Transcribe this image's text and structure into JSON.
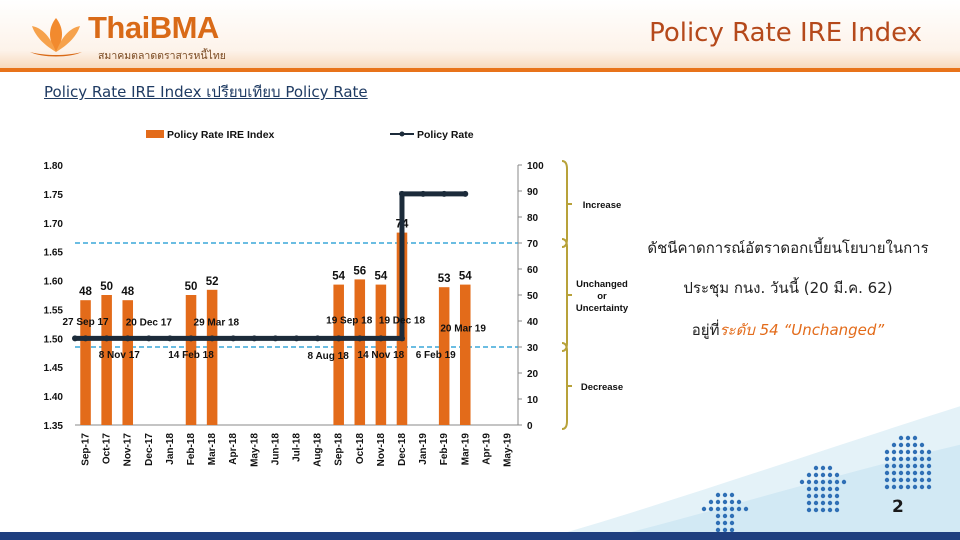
{
  "header": {
    "logo_text": "ThaiBMA",
    "logo_subtext": "สมาคมตลาดตราสารหนี้ไทย",
    "title": "Policy Rate IRE Index"
  },
  "subtitle": "Policy Rate IRE Index เปรียบเทียบ Policy Rate",
  "side_note": {
    "line1": "ดัชนีคาดการณ์อัตราดอกเบี้ยนโยบายในการ",
    "line2": "ประชุม กนง. วันนี้ (20 มี.ค. 62)",
    "line3_prefix": "อยู่ที่",
    "line3_accent": "ระดับ 54 “Unchanged”"
  },
  "page_number": "2",
  "colors": {
    "bar": "#e36b1a",
    "policy_line": "#1c2b3a",
    "threshold": "#3aa7d8",
    "bracket": "#b8a23a",
    "accent": "#e36b1a"
  },
  "chart_data": {
    "type": "bar",
    "legend": {
      "position": "top",
      "entries": [
        "Policy Rate IRE Index",
        "Policy Rate"
      ]
    },
    "categories": [
      "Sep-17",
      "Oct-17",
      "Nov-17",
      "Dec-17",
      "Jan-18",
      "Feb-18",
      "Mar-18",
      "Apr-18",
      "May-18",
      "Jun-18",
      "Jul-18",
      "Aug-18",
      "Sep-18",
      "Oct-18",
      "Nov-18",
      "Dec-18",
      "Jan-19",
      "Feb-19",
      "Mar-19",
      "Apr-19",
      "May-19"
    ],
    "series": [
      {
        "name": "Policy Rate IRE Index",
        "type": "bar",
        "axis": "right",
        "values": [
          48,
          50,
          48,
          null,
          null,
          50,
          52,
          null,
          null,
          null,
          null,
          null,
          54,
          56,
          54,
          74,
          null,
          53,
          54,
          null,
          null
        ],
        "labels": [
          "48",
          "50",
          "48",
          "",
          "",
          "50",
          "52",
          "",
          "",
          "",
          "",
          "",
          "54",
          "56",
          "54",
          "74",
          "",
          "53",
          "54",
          "",
          ""
        ]
      },
      {
        "name": "Policy Rate",
        "type": "line",
        "axis": "left",
        "x": [
          -0.5,
          0,
          1,
          2,
          3,
          4,
          5,
          6,
          7,
          8,
          9,
          10,
          11,
          12,
          13,
          14,
          15,
          15,
          16,
          17,
          18
        ],
        "values": [
          1.5,
          1.5,
          1.5,
          1.5,
          1.5,
          1.5,
          1.5,
          1.5,
          1.5,
          1.5,
          1.5,
          1.5,
          1.5,
          1.5,
          1.5,
          1.5,
          1.5,
          1.75,
          1.75,
          1.75,
          1.75
        ]
      }
    ],
    "left_axis": {
      "range": [
        1.35,
        1.8
      ],
      "ticks": [
        "1.35",
        "1.40",
        "1.45",
        "1.50",
        "1.55",
        "1.60",
        "1.65",
        "1.70",
        "1.75",
        "1.80"
      ]
    },
    "right_axis": {
      "range": [
        0,
        100
      ],
      "ticks": [
        "0",
        "10",
        "20",
        "30",
        "40",
        "50",
        "60",
        "70",
        "80",
        "90",
        "100"
      ]
    },
    "thresholds": [
      30,
      70
    ],
    "annotations": [
      {
        "text": "27 Sep 17",
        "x": 0,
        "y": 1.528
      },
      {
        "text": "8 Nov 17",
        "x": 1.6,
        "y": 1.471
      },
      {
        "text": "20 Dec 17",
        "x": 3.0,
        "y": 1.527
      },
      {
        "text": "14 Feb 18",
        "x": 5.0,
        "y": 1.471
      },
      {
        "text": "29 Mar 18",
        "x": 6.2,
        "y": 1.527
      },
      {
        "text": "8 Aug 18",
        "x": 11.5,
        "y": 1.469
      },
      {
        "text": "19 Sep 18",
        "x": 12.5,
        "y": 1.531
      },
      {
        "text": "14 Nov 18",
        "x": 14.0,
        "y": 1.471
      },
      {
        "text": "19 Dec 18",
        "x": 15.0,
        "y": 1.531
      },
      {
        "text": "20 Mar 19",
        "x": 17.9,
        "y": 1.517
      },
      {
        "text": "6 Feb 19",
        "x": 16.6,
        "y": 1.471
      }
    ],
    "zones": [
      {
        "label": "Increase",
        "range": [
          70,
          100
        ]
      },
      {
        "label": "Unchanged or Uncertainty",
        "range": [
          30,
          70
        ]
      },
      {
        "label": "Decrease",
        "range": [
          0,
          30
        ]
      }
    ]
  }
}
